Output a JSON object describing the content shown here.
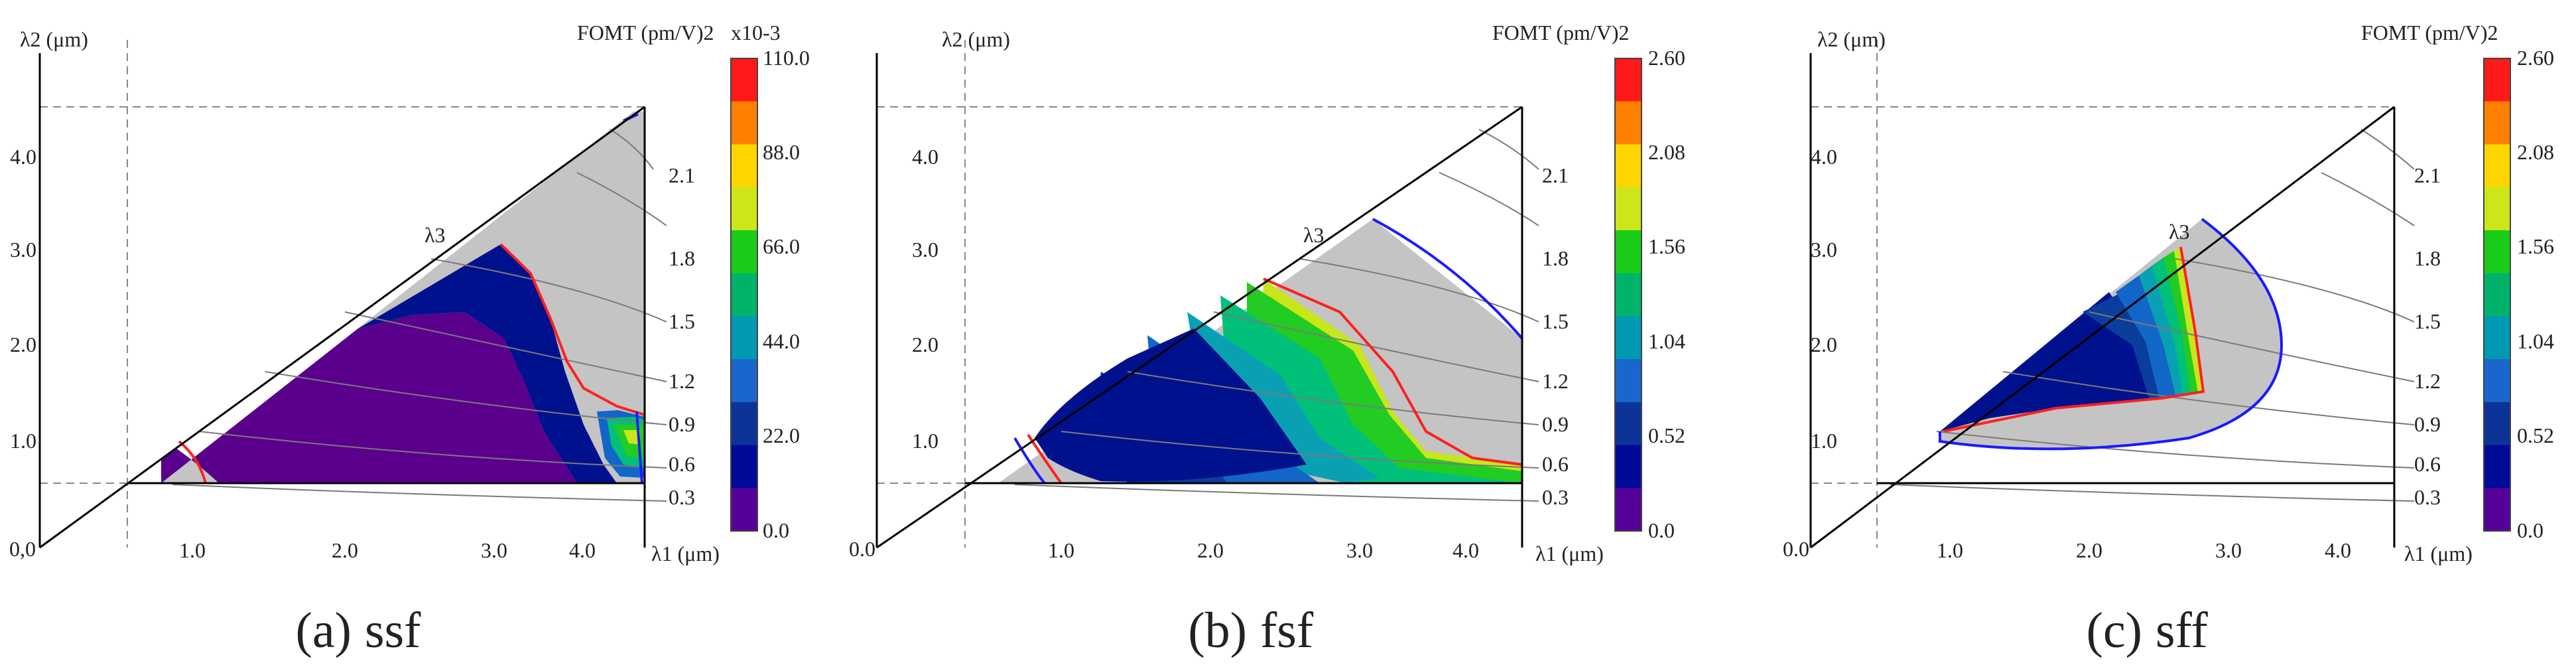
{
  "figure": {
    "panels": [
      {
        "id": "a",
        "caption_letter": "(a)",
        "caption_text": "ssf",
        "y_axis_label": "λ2 (μm)",
        "x_axis_label": "λ1 (μm)",
        "origin_label": "0,0",
        "corner_label": "λ3",
        "colorbar_title": "FOMT (pm/V)2",
        "colorbar_exponent": "x10-3",
        "colorbar_ticks": [
          "110.0",
          "88.0",
          "66.0",
          "44.0",
          "22.0",
          "0.0"
        ],
        "x_ticks": [
          "1.0",
          "2.0",
          "3.0",
          "4.0"
        ],
        "y_ticks": [
          "1.0",
          "2.0",
          "3.0",
          "4.0"
        ],
        "contour_labels": [
          "2.1",
          "1.8",
          "1.5",
          "1.2",
          "0.9",
          "0.6",
          "0.3"
        ]
      },
      {
        "id": "b",
        "caption_letter": "(b)",
        "caption_text": "fsf",
        "y_axis_label": "λ2 (μm)",
        "x_axis_label": "λ1 (μm)",
        "origin_label": "0.0",
        "corner_label": "λ3",
        "colorbar_title": "FOMT (pm/V)2",
        "colorbar_exponent": "",
        "colorbar_ticks": [
          "2.60",
          "2.08",
          "1.56",
          "1.04",
          "0.52",
          "0.0"
        ],
        "x_ticks": [
          "1.0",
          "2.0",
          "3.0",
          "4.0"
        ],
        "y_ticks": [
          "1.0",
          "2.0",
          "3.0",
          "4.0"
        ],
        "contour_labels": [
          "2.1",
          "1.8",
          "1.5",
          "1.2",
          "0.9",
          "0.6",
          "0.3"
        ]
      },
      {
        "id": "c",
        "caption_letter": "(c)",
        "caption_text": "sff",
        "y_axis_label": "λ2 (μm)",
        "x_axis_label": "λ1 (μm)",
        "origin_label": "0.0",
        "corner_label": "λ3",
        "colorbar_title": "FOMT (pm/V)2",
        "colorbar_exponent": "",
        "colorbar_ticks": [
          "2.60",
          "2.08",
          "1.56",
          "1.04",
          "0.52",
          "0.0"
        ],
        "x_ticks": [
          "1.0",
          "2.0",
          "3.0",
          "4.0"
        ],
        "y_ticks": [
          "1.0",
          "2.0",
          "3.0",
          "4.0"
        ],
        "contour_labels": [
          "2.1",
          "1.8",
          "1.5",
          "1.2",
          "0.9",
          "0.6",
          "0.3"
        ]
      }
    ],
    "colorbar_colors": [
      "#ff1a1a",
      "#ff8000",
      "#ffd500",
      "#cce619",
      "#1acc1a",
      "#00b36b",
      "#0099b3",
      "#1a66cc",
      "#0d3399",
      "#000a99",
      "#550099"
    ],
    "region_colors": {
      "level_0": "#5a008c",
      "level_1": "#00118e",
      "level_2": "#0a3d9c",
      "level_3": "#1266c7",
      "level_4": "#0aa0b4",
      "level_5": "#00c07a",
      "level_6": "#22cc22",
      "level_7": "#c8e61a",
      "outside": "#c4c4c4",
      "boundary_outer": "#1a1aff",
      "boundary_inner": "#ff2020",
      "guide": "#888888",
      "contour": "#7a7a7a"
    }
  },
  "chart_data": [
    {
      "type": "heatmap",
      "title": "(a) ssf",
      "xlabel": "λ1 (μm)",
      "ylabel": "λ2 (μm)",
      "xlim": [
        0.0,
        4.5
      ],
      "ylim": [
        0.0,
        4.5
      ],
      "x_ticks": [
        1.0,
        2.0,
        3.0,
        4.0
      ],
      "y_ticks": [
        1.0,
        2.0,
        3.0,
        4.0
      ],
      "colorbar": {
        "label": "FOMT (pm/V)2",
        "scale": "x10-3",
        "min": 0.0,
        "max": 110.0,
        "ticks": [
          0.0,
          22.0,
          44.0,
          66.0,
          88.0,
          110.0
        ]
      },
      "guide_lines": {
        "lambda1": 0.5,
        "lambda2": 0.5,
        "lambda2_top": 4.5
      },
      "lambda3_contours": [
        0.3,
        0.6,
        0.9,
        1.2,
        1.5,
        1.8,
        2.1
      ],
      "dominant_region": "0.0-11.0 over most of the allowed domain; 66.0-88.0 near λ1≈4.4, λ2≈0.7-1.0"
    },
    {
      "type": "heatmap",
      "title": "(b) fsf",
      "xlabel": "λ1 (μm)",
      "ylabel": "λ2 (μm)",
      "xlim": [
        0.0,
        4.5
      ],
      "ylim": [
        0.0,
        4.5
      ],
      "x_ticks": [
        1.0,
        2.0,
        3.0,
        4.0
      ],
      "y_ticks": [
        1.0,
        2.0,
        3.0,
        4.0
      ],
      "colorbar": {
        "label": "FOMT (pm/V)2",
        "scale": "",
        "min": 0.0,
        "max": 2.6,
        "ticks": [
          0.0,
          0.52,
          1.04,
          1.56,
          2.08,
          2.6
        ]
      },
      "guide_lines": {
        "lambda1": 0.5,
        "lambda2": 0.5,
        "lambda2_top": 4.5
      },
      "lambda3_contours": [
        0.3,
        0.6,
        0.9,
        1.2,
        1.5,
        1.8,
        2.1
      ],
      "dominant_region": "0.26-0.52 for λ1 1.1-2.6; rising to 1.56-2.08 near λ1≈3.0-3.8"
    },
    {
      "type": "heatmap",
      "title": "(c) sff",
      "xlabel": "λ1 (μm)",
      "ylabel": "λ2 (μm)",
      "xlim": [
        0.0,
        4.5
      ],
      "ylim": [
        0.0,
        4.5
      ],
      "x_ticks": [
        1.0,
        2.0,
        3.0,
        4.0
      ],
      "y_ticks": [
        1.0,
        2.0,
        3.0,
        4.0
      ],
      "colorbar": {
        "label": "FOMT (pm/V)2",
        "scale": "",
        "min": 0.0,
        "max": 2.6,
        "ticks": [
          0.0,
          0.52,
          1.04,
          1.56,
          2.08,
          2.6
        ]
      },
      "guide_lines": {
        "lambda1": 0.5,
        "lambda2": 0.5,
        "lambda2_top": 4.5
      },
      "lambda3_contours": [
        0.3,
        0.6,
        0.9,
        1.2,
        1.5,
        1.8,
        2.1
      ],
      "dominant_region": "phase-matched band λ1 1.1-2.9, λ2 1.1-2.7; values up to 1.56-2.08 near λ1≈2.7"
    }
  ]
}
